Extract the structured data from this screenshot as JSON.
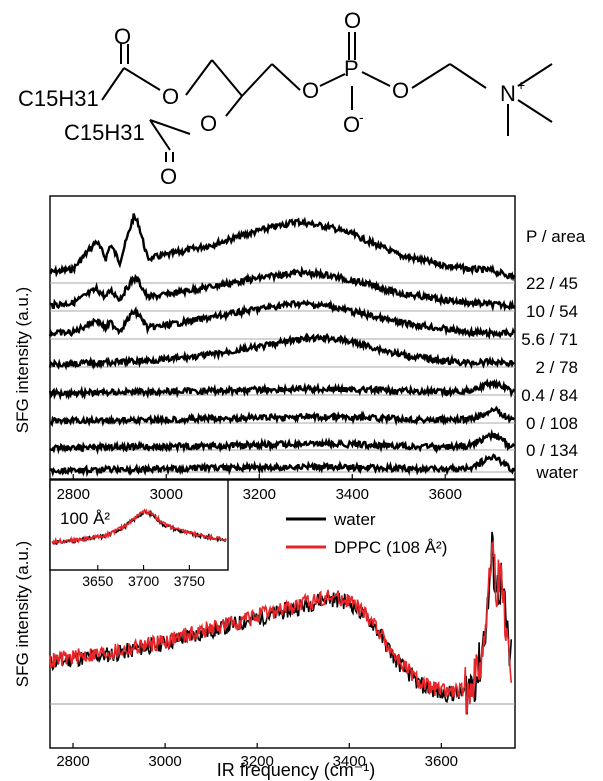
{
  "molecule": {
    "chain1": "C15H31",
    "chain2": "C15H31",
    "atoms": {
      "oxygen": "O",
      "phosphorus": "P",
      "nitrogen": "N",
      "charge_plus": "+",
      "charge_minus": "-"
    }
  },
  "chart_data": [
    {
      "type": "line",
      "ylabel": "SFG intensity (a.u.)",
      "x_ticks": [
        2800,
        3000,
        3200,
        3400,
        3600
      ],
      "xlim": [
        2750,
        3750
      ],
      "legend_title": "P / area",
      "series": [
        {
          "name": "22 / 45",
          "x": [
            2750,
            2800,
            2850,
            2870,
            2880,
            2900,
            2930,
            2940,
            2960,
            3000,
            3100,
            3200,
            3280,
            3350,
            3400,
            3450,
            3500,
            3600,
            3650,
            3700,
            3740
          ],
          "y": [
            0.15,
            0.2,
            0.6,
            0.35,
            0.55,
            0.3,
            0.95,
            0.85,
            0.35,
            0.4,
            0.55,
            0.75,
            0.88,
            0.8,
            0.7,
            0.55,
            0.4,
            0.25,
            0.2,
            0.18,
            0.1
          ]
        },
        {
          "name": "10 / 54",
          "x": [
            2750,
            2800,
            2850,
            2870,
            2880,
            2900,
            2930,
            2940,
            2960,
            3000,
            3100,
            3200,
            3280,
            3350,
            3400,
            3450,
            3500,
            3600,
            3650,
            3700,
            3740
          ],
          "y": [
            0.1,
            0.15,
            0.4,
            0.25,
            0.38,
            0.22,
            0.6,
            0.55,
            0.25,
            0.3,
            0.45,
            0.6,
            0.7,
            0.65,
            0.55,
            0.45,
            0.32,
            0.2,
            0.15,
            0.12,
            0.1
          ]
        },
        {
          "name": "5.6 / 71",
          "x": [
            2750,
            2800,
            2850,
            2870,
            2880,
            2900,
            2930,
            2940,
            2960,
            3000,
            3100,
            3200,
            3280,
            3350,
            3400,
            3450,
            3500,
            3600,
            3650,
            3700,
            3740
          ],
          "y": [
            0.1,
            0.12,
            0.35,
            0.2,
            0.3,
            0.15,
            0.5,
            0.45,
            0.2,
            0.25,
            0.4,
            0.55,
            0.65,
            0.6,
            0.5,
            0.4,
            0.3,
            0.18,
            0.12,
            0.1,
            0.1
          ]
        },
        {
          "name": "2 / 78",
          "x": [
            2750,
            2800,
            2900,
            3000,
            3100,
            3200,
            3280,
            3350,
            3400,
            3450,
            3500,
            3600,
            3650,
            3700,
            3740
          ],
          "y": [
            0.05,
            0.07,
            0.1,
            0.15,
            0.25,
            0.4,
            0.55,
            0.58,
            0.5,
            0.38,
            0.25,
            0.12,
            0.08,
            0.1,
            0.08
          ]
        },
        {
          "name": "0.4 / 84",
          "x": [
            2750,
            2800,
            2900,
            3000,
            3100,
            3200,
            3300,
            3400,
            3500,
            3600,
            3650,
            3680,
            3700,
            3710,
            3730,
            3740
          ],
          "y": [
            0.05,
            0.06,
            0.08,
            0.1,
            0.12,
            0.15,
            0.17,
            0.16,
            0.12,
            0.08,
            0.12,
            0.25,
            0.35,
            0.3,
            0.2,
            0.1
          ]
        },
        {
          "name": "0 / 108",
          "x": [
            2750,
            2800,
            2900,
            3000,
            3100,
            3200,
            3300,
            3400,
            3500,
            3600,
            3650,
            3680,
            3700,
            3710,
            3730,
            3740
          ],
          "y": [
            0.05,
            0.06,
            0.08,
            0.1,
            0.12,
            0.15,
            0.17,
            0.16,
            0.12,
            0.08,
            0.1,
            0.22,
            0.4,
            0.35,
            0.2,
            0.1
          ]
        },
        {
          "name": "0 / 134",
          "x": [
            2750,
            2800,
            2900,
            3000,
            3100,
            3200,
            3300,
            3400,
            3500,
            3600,
            3650,
            3680,
            3700,
            3710,
            3730,
            3740
          ],
          "y": [
            0.05,
            0.06,
            0.08,
            0.1,
            0.12,
            0.15,
            0.17,
            0.16,
            0.12,
            0.08,
            0.12,
            0.3,
            0.45,
            0.4,
            0.22,
            0.1
          ]
        },
        {
          "name": "water",
          "x": [
            2750,
            2800,
            2900,
            3000,
            3100,
            3200,
            3300,
            3400,
            3500,
            3600,
            3650,
            3680,
            3700,
            3710,
            3730,
            3740
          ],
          "y": [
            0.05,
            0.06,
            0.08,
            0.1,
            0.12,
            0.15,
            0.17,
            0.16,
            0.12,
            0.08,
            0.12,
            0.35,
            0.5,
            0.45,
            0.25,
            0.1
          ]
        }
      ]
    },
    {
      "type": "line",
      "xlabel": "IR frequency (cm⁻¹)",
      "ylabel": "SFG intensity (a.u.)",
      "x_ticks": [
        2800,
        3000,
        3200,
        3400,
        3600
      ],
      "xlim": [
        2750,
        3760
      ],
      "ylim": [
        0,
        1
      ],
      "legend_position": "top-right",
      "series": [
        {
          "name": "water",
          "color": "#000000",
          "x": [
            2750,
            2800,
            2900,
            3000,
            3100,
            3200,
            3300,
            3350,
            3400,
            3450,
            3500,
            3550,
            3600,
            3650,
            3680,
            3700,
            3710,
            3720,
            3730,
            3740,
            3750
          ],
          "y": [
            0.2,
            0.22,
            0.25,
            0.3,
            0.36,
            0.42,
            0.48,
            0.52,
            0.5,
            0.4,
            0.22,
            0.1,
            0.05,
            0.05,
            0.15,
            0.45,
            0.75,
            0.55,
            0.6,
            0.4,
            0.2
          ]
        },
        {
          "name": "DPPC (108 Å²)",
          "color": "#e8262a",
          "x": [
            2750,
            2800,
            2900,
            3000,
            3100,
            3200,
            3300,
            3350,
            3400,
            3450,
            3500,
            3550,
            3600,
            3650,
            3680,
            3700,
            3710,
            3720,
            3730,
            3740,
            3750
          ],
          "y": [
            0.21,
            0.23,
            0.26,
            0.31,
            0.37,
            0.43,
            0.49,
            0.53,
            0.51,
            0.41,
            0.23,
            0.11,
            0.06,
            0.06,
            0.16,
            0.46,
            0.78,
            0.57,
            0.62,
            0.4,
            0.2
          ]
        }
      ]
    },
    {
      "type": "line",
      "annotation": "100 Å²",
      "x_ticks_bottom": [
        3650,
        3700,
        3750
      ],
      "x_ticks_top": [
        2800,
        3000
      ],
      "xlim": [
        3600,
        3790
      ],
      "series": [
        {
          "name": "water",
          "color": "#000000",
          "x": [
            3600,
            3630,
            3660,
            3680,
            3700,
            3710,
            3720,
            3740,
            3760,
            3790
          ],
          "y": [
            0.2,
            0.25,
            0.35,
            0.55,
            0.85,
            0.8,
            0.6,
            0.45,
            0.35,
            0.25
          ]
        },
        {
          "name": "DPPC (108 Å²)",
          "color": "#e8262a",
          "x": [
            3600,
            3630,
            3660,
            3680,
            3700,
            3710,
            3720,
            3740,
            3760,
            3790
          ],
          "y": [
            0.22,
            0.26,
            0.36,
            0.56,
            0.87,
            0.82,
            0.62,
            0.46,
            0.36,
            0.26
          ]
        }
      ]
    }
  ]
}
